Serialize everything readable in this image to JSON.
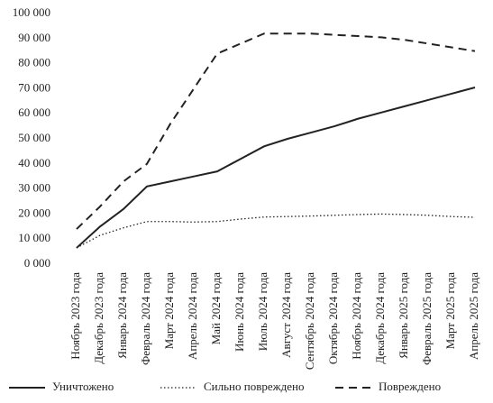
{
  "chart_data": {
    "type": "line",
    "categories": [
      "Ноябрь 2023 года",
      "Декабрь 2023 года",
      "Январь 2024 года",
      "Февраль 2024 года",
      "Март 2024 года",
      "Апрель 2024 года",
      "Май 2024 года",
      "Июнь 2024 года",
      "Июль 2024 года",
      "Август 2024 года",
      "Сентябрь 2024 года",
      "Октябрь 2024 года",
      "Ноябрь 2024 года",
      "Декабрь 2024 года",
      "Январь 2025 года",
      "Февраль 2025 года",
      "Март 2025 года",
      "Апрель 2025 года"
    ],
    "series": [
      {
        "name": "Уничтожено",
        "color": "#222222",
        "style": "solid",
        "values": [
          6500,
          15000,
          22000,
          31000,
          33000,
          35000,
          37000,
          42000,
          47000,
          50000,
          52500,
          55000,
          58000,
          60500,
          63000,
          65500,
          68000,
          70500
        ]
      },
      {
        "name": "Сильно повреждено",
        "color": "#222222",
        "style": "dotted",
        "values": [
          6500,
          11500,
          14500,
          17000,
          17000,
          16800,
          17000,
          18000,
          18800,
          19000,
          19200,
          19500,
          19800,
          20000,
          19800,
          19500,
          19000,
          18700
        ]
      },
      {
        "name": "Повреждено",
        "color": "#222222",
        "style": "dashed",
        "values": [
          14000,
          23000,
          33000,
          40000,
          56000,
          70000,
          84000,
          88000,
          92000,
          92000,
          92000,
          91500,
          91000,
          90500,
          89500,
          88000,
          86500,
          85000
        ]
      }
    ],
    "ylim": [
      0,
      100000
    ],
    "yticks": [
      {
        "value": 0,
        "label": "0 000"
      },
      {
        "value": 10000,
        "label": "10 000"
      },
      {
        "value": 20000,
        "label": "20 000"
      },
      {
        "value": 30000,
        "label": "30 000"
      },
      {
        "value": 40000,
        "label": "40 000"
      },
      {
        "value": 50000,
        "label": "50 000"
      },
      {
        "value": 60000,
        "label": "60 000"
      },
      {
        "value": 70000,
        "label": "70 000"
      },
      {
        "value": 80000,
        "label": "80 000"
      },
      {
        "value": 90000,
        "label": "90 000"
      },
      {
        "value": 100000,
        "label": "100 000"
      }
    ],
    "grid": false
  }
}
